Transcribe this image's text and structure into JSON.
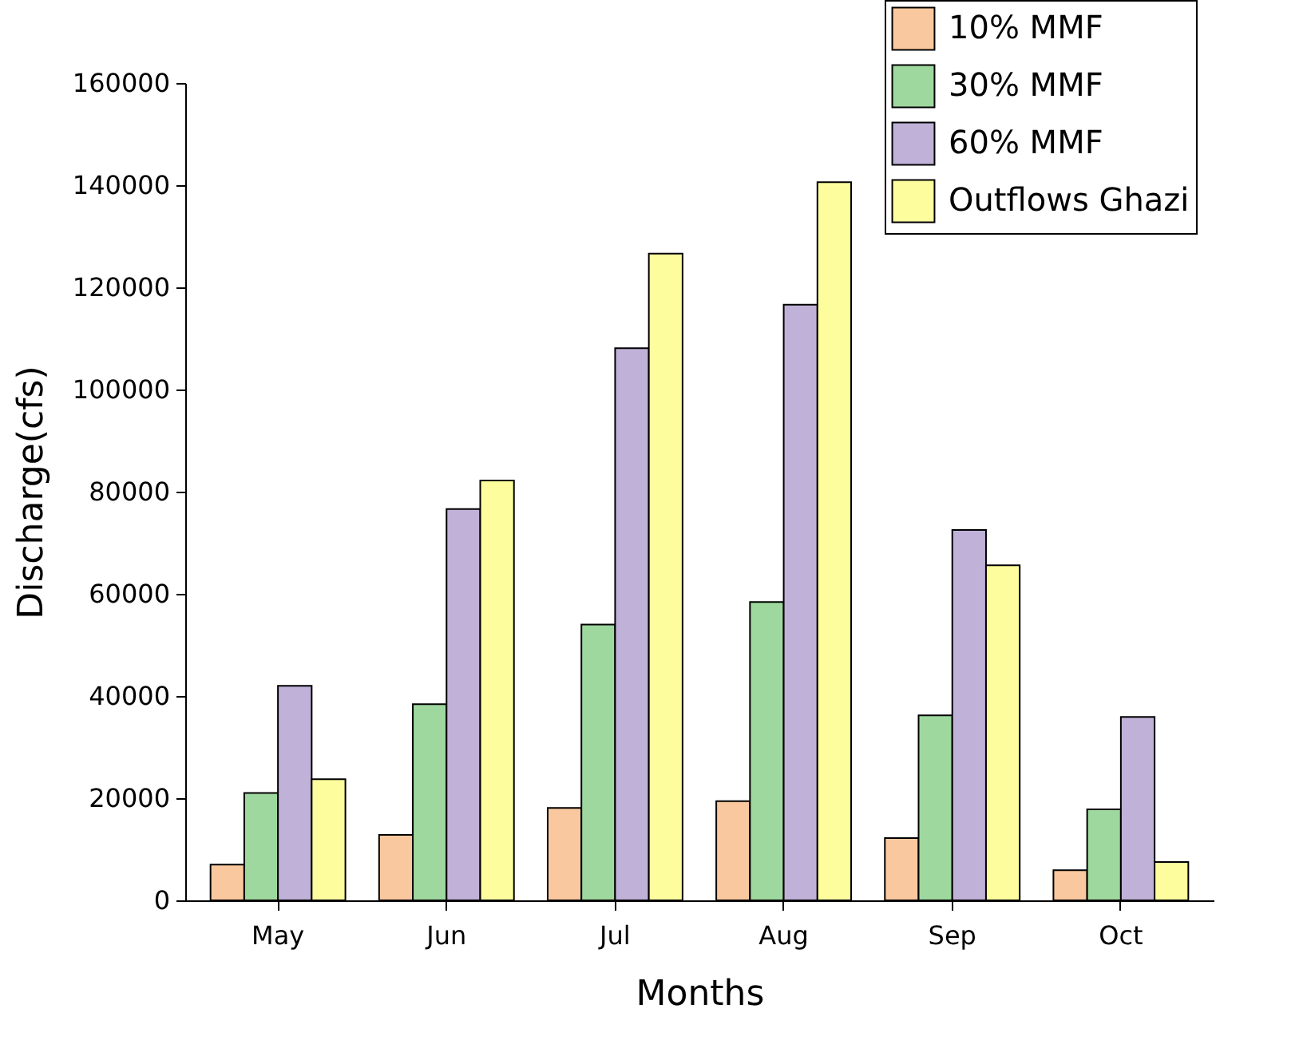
{
  "chart_data": {
    "type": "bar",
    "xlabel": "Months",
    "ylabel": "Discharge(cfs)",
    "categories": [
      "May",
      "Jun",
      "Jul",
      "Aug",
      "Sep",
      "Oct"
    ],
    "series": [
      {
        "name": "10% MMF",
        "color": "#fac89e",
        "values": [
          7000,
          12800,
          18100,
          19400,
          12200,
          5900
        ]
      },
      {
        "name": "30% MMF",
        "color": "#9ed89e",
        "values": [
          21000,
          38400,
          54000,
          58400,
          36200,
          17800
        ]
      },
      {
        "name": "60% MMF",
        "color": "#c0b1d8",
        "values": [
          42000,
          76600,
          108100,
          116600,
          72500,
          35900
        ]
      },
      {
        "name": "Outflows Ghazi",
        "color": "#fdfd9e",
        "values": [
          23700,
          82200,
          126600,
          140600,
          65600,
          7500
        ]
      }
    ],
    "ylim": [
      0,
      160000
    ],
    "yticks": [
      0,
      20000,
      40000,
      60000,
      80000,
      100000,
      120000,
      140000,
      160000
    ],
    "grid": false,
    "legend": "top right"
  }
}
